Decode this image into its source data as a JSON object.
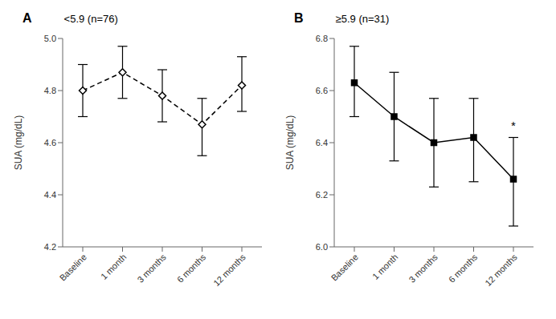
{
  "chart_data": [
    {
      "type": "line",
      "panel_label": "A",
      "title": "<5.9 (n=76)",
      "categories": [
        "Baseline",
        "1 month",
        "3 months",
        "6 months",
        "12 months"
      ],
      "values": [
        4.8,
        4.87,
        4.78,
        4.67,
        4.82
      ],
      "error_upper": [
        4.9,
        4.97,
        4.88,
        4.77,
        4.93
      ],
      "error_lower": [
        4.7,
        4.77,
        4.68,
        4.55,
        4.72
      ],
      "ylim": [
        4.2,
        5.0
      ],
      "yticks": [
        4.2,
        4.4,
        4.6,
        4.8,
        {
          "value": 5.0,
          "label": "5.0"
        }
      ],
      "y_label": "SUA (mg/dL)",
      "line_style": "dashed",
      "marker": "open_diamond",
      "color": "black",
      "grid": false
    },
    {
      "type": "line",
      "panel_label": "B",
      "title": "≥5.9 (n=31)",
      "categories": [
        "Baseline",
        "1 month",
        "3 months",
        "6 months",
        "12 months"
      ],
      "values": [
        6.63,
        6.5,
        6.4,
        6.42,
        6.26
      ],
      "error_upper": [
        6.77,
        6.67,
        6.57,
        6.57,
        6.42
      ],
      "error_lower": [
        6.5,
        6.33,
        6.23,
        6.25,
        6.08
      ],
      "ylim": [
        6.0,
        6.8
      ],
      "yticks": [
        {
          "value": 6.0,
          "label": "6.0"
        },
        6.2,
        6.4,
        6.6,
        6.8
      ],
      "y_label": "SUA (mg/dL)",
      "line_style": "solid",
      "marker": "square",
      "color": "black",
      "grid": false,
      "annotations": [
        {
          "text": "*",
          "x": "12 months",
          "y": 6.435
        }
      ]
    }
  ]
}
